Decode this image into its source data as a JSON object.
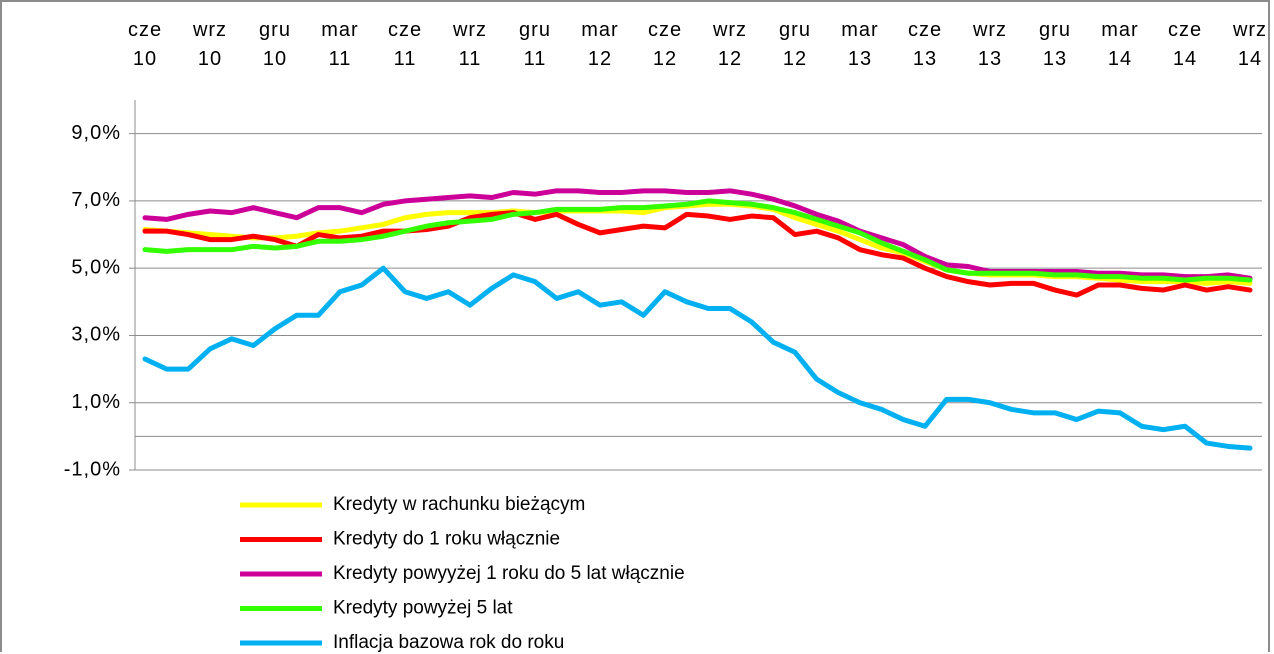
{
  "chart_data": {
    "type": "line",
    "categories": [
      "cze 10",
      null,
      null,
      "wrz 10",
      null,
      null,
      "gru 10",
      null,
      null,
      "mar 11",
      null,
      null,
      "cze 11",
      null,
      null,
      "wrz 11",
      null,
      null,
      "gru 11",
      null,
      null,
      "mar 12",
      null,
      null,
      "cze 12",
      null,
      null,
      "wrz 12",
      null,
      null,
      "gru 12",
      null,
      null,
      "mar 13",
      null,
      null,
      "cze 13",
      null,
      null,
      "wrz 13",
      null,
      null,
      "gru 13",
      null,
      null,
      "mar 14",
      null,
      null,
      "cze 14",
      null,
      null,
      "wrz 14"
    ],
    "series": [
      {
        "name": "Kredyty w rachunku bieżącym",
        "color": "#ffff00",
        "values": [
          6.15,
          6.1,
          6.05,
          6.0,
          5.95,
          5.9,
          5.9,
          5.95,
          6.05,
          6.1,
          6.2,
          6.3,
          6.5,
          6.6,
          6.65,
          6.65,
          6.65,
          6.7,
          6.65,
          6.7,
          6.7,
          6.7,
          6.7,
          6.65,
          6.8,
          6.85,
          6.9,
          6.9,
          6.85,
          6.75,
          6.5,
          6.3,
          6.1,
          5.85,
          5.6,
          5.45,
          5.2,
          4.95,
          4.85,
          4.8,
          4.8,
          4.8,
          4.75,
          4.75,
          4.7,
          4.65,
          4.6,
          4.6,
          4.6,
          4.55,
          4.6,
          4.55
        ]
      },
      {
        "name": "Kredyty do 1 roku włącznie",
        "color": "#ff0000",
        "values": [
          6.1,
          6.1,
          6.0,
          5.85,
          5.85,
          5.95,
          5.85,
          5.65,
          6.0,
          5.9,
          5.95,
          6.1,
          6.1,
          6.15,
          6.25,
          6.5,
          6.6,
          6.65,
          6.45,
          6.6,
          6.3,
          6.05,
          6.15,
          6.25,
          6.2,
          6.6,
          6.55,
          6.45,
          6.55,
          6.5,
          6.0,
          6.1,
          5.9,
          5.55,
          5.4,
          5.3,
          5.0,
          4.75,
          4.6,
          4.5,
          4.55,
          4.55,
          4.35,
          4.2,
          4.5,
          4.5,
          4.4,
          4.35,
          4.5,
          4.35,
          4.45,
          4.35
        ]
      },
      {
        "name": "Kredyty powyyżej 1 roku do 5 lat włącznie",
        "color": "#cc0099",
        "values": [
          6.5,
          6.45,
          6.6,
          6.7,
          6.65,
          6.8,
          6.65,
          6.5,
          6.8,
          6.8,
          6.65,
          6.9,
          7.0,
          7.05,
          7.1,
          7.15,
          7.1,
          7.25,
          7.2,
          7.3,
          7.3,
          7.25,
          7.25,
          7.3,
          7.3,
          7.25,
          7.25,
          7.3,
          7.2,
          7.05,
          6.85,
          6.6,
          6.4,
          6.1,
          5.9,
          5.7,
          5.35,
          5.1,
          5.05,
          4.9,
          4.9,
          4.9,
          4.9,
          4.9,
          4.85,
          4.85,
          4.8,
          4.8,
          4.75,
          4.75,
          4.8,
          4.7
        ]
      },
      {
        "name": "Kredyty powyżej 5 lat",
        "color": "#33ff00",
        "values": [
          5.55,
          5.5,
          5.55,
          5.55,
          5.55,
          5.65,
          5.6,
          5.65,
          5.8,
          5.8,
          5.85,
          5.95,
          6.1,
          6.25,
          6.35,
          6.4,
          6.45,
          6.6,
          6.65,
          6.75,
          6.75,
          6.75,
          6.8,
          6.8,
          6.85,
          6.9,
          7.0,
          6.95,
          6.9,
          6.8,
          6.65,
          6.45,
          6.25,
          6.05,
          5.75,
          5.5,
          5.25,
          4.95,
          4.85,
          4.85,
          4.85,
          4.85,
          4.8,
          4.8,
          4.75,
          4.75,
          4.7,
          4.7,
          4.65,
          4.7,
          4.7,
          4.65
        ]
      },
      {
        "name": "Inflacja bazowa rok do roku",
        "color": "#00b0f0",
        "values": [
          2.3,
          2.0,
          2.0,
          2.6,
          2.9,
          2.7,
          3.2,
          3.6,
          3.6,
          4.3,
          4.5,
          5.0,
          4.3,
          4.1,
          4.3,
          3.9,
          4.4,
          4.8,
          4.6,
          4.1,
          4.3,
          3.9,
          4.0,
          3.6,
          4.3,
          4.0,
          3.8,
          3.8,
          3.4,
          2.8,
          2.5,
          1.7,
          1.3,
          1.0,
          0.8,
          0.5,
          0.3,
          1.1,
          1.1,
          1.0,
          0.8,
          0.7,
          0.7,
          0.5,
          0.75,
          0.7,
          0.3,
          0.2,
          0.3,
          -0.2,
          -0.3,
          -0.35
        ]
      }
    ],
    "ylim": [
      -1,
      10
    ],
    "yticks": [
      {
        "value": -1,
        "label": "-1,0%"
      },
      {
        "value": 1,
        "label": "1,0%"
      },
      {
        "value": 3,
        "label": "3,0%"
      },
      {
        "value": 5,
        "label": "5,0%"
      },
      {
        "value": 7,
        "label": "7,0%"
      },
      {
        "value": 9,
        "label": "9,0%"
      }
    ],
    "grid": true,
    "legend": "bottom"
  }
}
